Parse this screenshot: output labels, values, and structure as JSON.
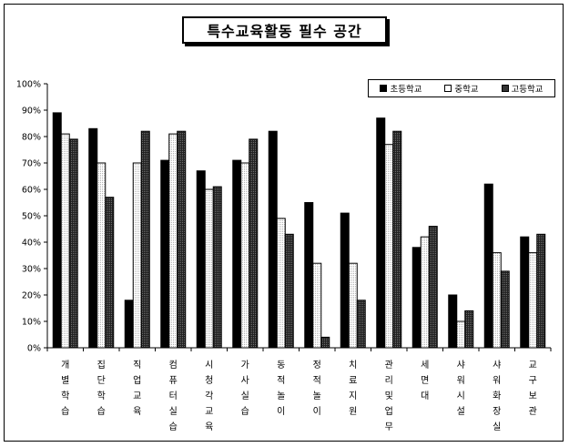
{
  "chart_data": {
    "type": "bar",
    "title": "특수교육활동 필수 공간",
    "ylim": [
      0,
      100
    ],
    "yticks": [
      "0%",
      "10%",
      "20%",
      "30%",
      "40%",
      "50%",
      "60%",
      "70%",
      "80%",
      "90%",
      "100%"
    ],
    "categories": [
      "개별학습",
      "집단학습",
      "직업교육",
      "컴퓨터실습",
      "시청각교육",
      "가사실습",
      "동적놀이",
      "정적놀이",
      "치료지원",
      "관리및업무",
      "세면대",
      "샤워시설",
      "샤워화장실",
      "교구보관"
    ],
    "series": [
      {
        "name": "초등학교",
        "color": "#000000",
        "values": [
          89,
          83,
          18,
          71,
          67,
          71,
          82,
          55,
          51,
          87,
          38,
          20,
          62,
          42
        ]
      },
      {
        "name": "중학교",
        "color": "#ffffff",
        "values": [
          81,
          70,
          70,
          81,
          60,
          70,
          49,
          32,
          32,
          77,
          42,
          10,
          36,
          36
        ]
      },
      {
        "name": "고등학교",
        "color": "#404040",
        "values": [
          79,
          57,
          82,
          82,
          61,
          79,
          43,
          4,
          18,
          82,
          46,
          14,
          29,
          43
        ]
      }
    ],
    "legend_position": "top-right",
    "grid": false
  }
}
